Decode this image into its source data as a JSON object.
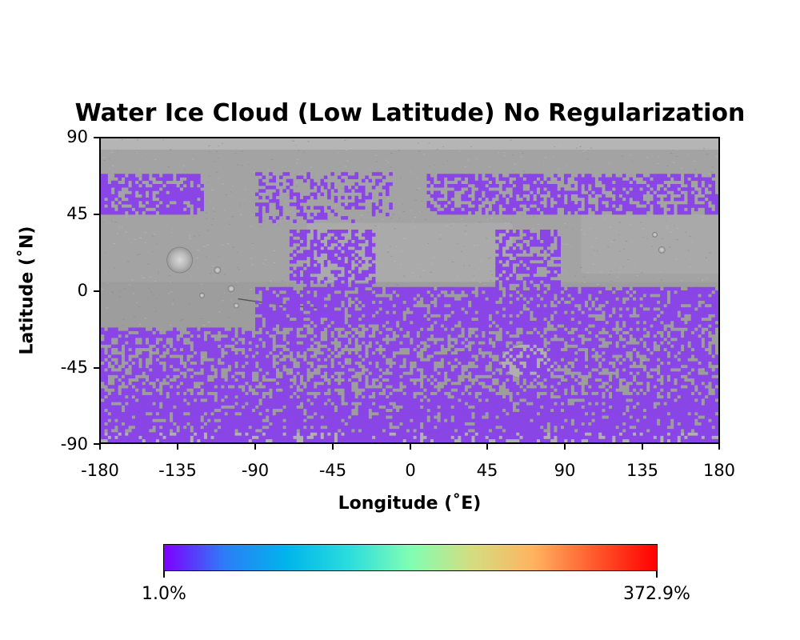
{
  "chart_data": {
    "type": "heatmap",
    "title": "Water Ice Cloud (Low Latitude) No Regularization",
    "xlabel": "Longitude (˚E)",
    "ylabel": "Latitude (˚N)",
    "xlim": [
      -180,
      180
    ],
    "ylim": [
      -90,
      90
    ],
    "x_ticks": [
      "-180",
      "-135",
      "-90",
      "-45",
      "0",
      "45",
      "90",
      "135",
      "180"
    ],
    "y_ticks": [
      "90",
      "45",
      "0",
      "-45",
      "-90"
    ],
    "background": "shaded-relief basemap (grayscale)",
    "data_color": "#8a45e6",
    "colorbar": {
      "orientation": "horizontal",
      "placement": "bottom",
      "colormap": "rainbow",
      "min_label": "1.0%",
      "max_label": "372.9%",
      "colors": [
        "#7f00ff",
        "#2c7ef7",
        "#00b5eb",
        "#2adddd",
        "#80feb3",
        "#d4dd80",
        "#ffb360",
        "#ff582c",
        "#ff0000"
      ]
    },
    "cloud_bands": [
      {
        "lat_range": [
          -90,
          -62
        ],
        "lon_range": [
          -180,
          180
        ],
        "density": 0.82
      },
      {
        "lat_range": [
          -62,
          -22
        ],
        "lon_range": [
          -180,
          180
        ],
        "density": 0.6
      },
      {
        "lat_range": [
          -22,
          2
        ],
        "lon_range": [
          -90,
          180
        ],
        "density": 0.78
      },
      {
        "lat_range": [
          2,
          35
        ],
        "lon_range": [
          -70,
          -20
        ],
        "density": 0.55
      },
      {
        "lat_range": [
          2,
          35
        ],
        "lon_range": [
          50,
          88
        ],
        "density": 0.6
      },
      {
        "lat_range": [
          45,
          68
        ],
        "lon_range": [
          -180,
          -120
        ],
        "density": 0.65
      },
      {
        "lat_range": [
          45,
          68
        ],
        "lon_range": [
          10,
          180
        ],
        "density": 0.55
      },
      {
        "lat_range": [
          40,
          70
        ],
        "lon_range": [
          -90,
          -10
        ],
        "density": 0.3
      }
    ]
  }
}
